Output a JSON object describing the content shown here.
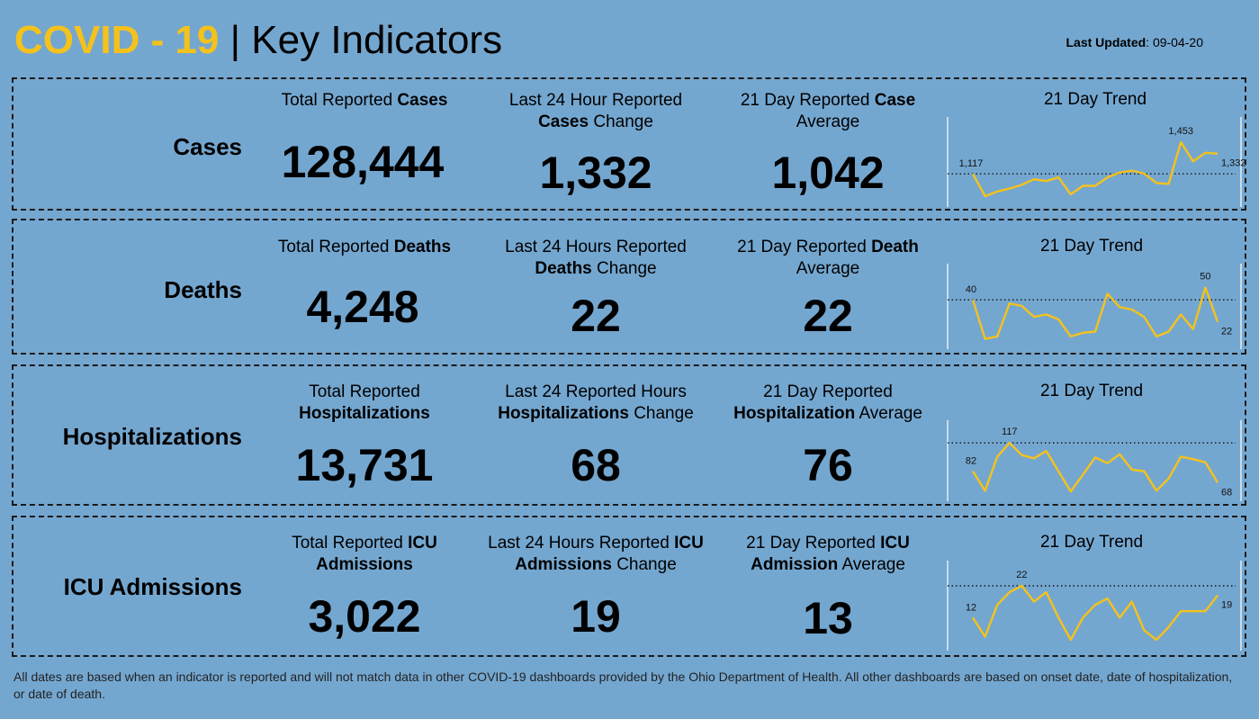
{
  "header": {
    "title_prefix": "COVID - 19",
    "title_sep": " | ",
    "title_suffix": "Key Indicators",
    "updated_label": "Last Updated",
    "updated_value": ": 09-04-20"
  },
  "colors": {
    "background": "#74a7d0",
    "accent": "#f5c21b",
    "line": "#f5c21b"
  },
  "rows": [
    {
      "label": "Cases",
      "h1a": "Total Reported ",
      "h1b": "Cases",
      "h1c": "",
      "h2a": "Last 24 Hour Reported ",
      "h2b": "Cases",
      "h2c": " Change",
      "h3a": "21 Day Reported ",
      "h3b": "Case",
      "h3c": " Average",
      "total": "128,444",
      "change": "1,332",
      "average": "1,042",
      "trend_title": "21 Day Trend"
    },
    {
      "label": "Deaths",
      "h1a": "Total Reported ",
      "h1b": "Deaths",
      "h1c": "",
      "h2a": "Last 24 Hours Reported ",
      "h2b": "Deaths",
      "h2c": " Change",
      "h3a": "21 Day Reported ",
      "h3b": "Death",
      "h3c": " Average",
      "total": "4,248",
      "change": "22",
      "average": "22",
      "trend_title": "21 Day Trend"
    },
    {
      "label": "Hospitalizations",
      "h1a": "Total Reported ",
      "h1b": "Hospitalizations",
      "h1c": "",
      "h2a": "Last 24 Reported Hours ",
      "h2b": "Hospitalizations",
      "h2c": " Change",
      "h3a": "21 Day Reported ",
      "h3b": "Hospitalization",
      "h3c": " Average",
      "total": "13,731",
      "change": "68",
      "average": "76",
      "trend_title": "21 Day Trend"
    },
    {
      "label": "ICU Admissions",
      "h1a": "Total Reported ",
      "h1b": "ICU Admissions",
      "h1c": "",
      "h2a": "Last 24 Hours Reported ",
      "h2b": "ICU Admissions",
      "h2c": " Change",
      "h3a": "21 Day Reported ",
      "h3b": "ICU Admission",
      "h3c": " Average",
      "total": "3,022",
      "change": "19",
      "average": "13",
      "trend_title": "21 Day Trend"
    }
  ],
  "chart_data": [
    {
      "type": "line",
      "title": "21 Day Trend",
      "values": [
        1117,
        880,
        930,
        960,
        1000,
        1060,
        1040,
        1080,
        900,
        990,
        990,
        1080,
        1130,
        1150,
        1120,
        1020,
        1010,
        1453,
        1250,
        1340,
        1332
      ],
      "reference_line": 1117,
      "labels": {
        "first": "1,117",
        "max": "1,453",
        "last": "1,332"
      }
    },
    {
      "type": "line",
      "title": "21 Day Trend",
      "values": [
        40,
        8,
        10,
        37,
        35,
        26,
        28,
        24,
        10,
        13,
        14,
        45,
        34,
        32,
        26,
        10,
        14,
        28,
        16,
        50,
        22
      ],
      "reference_line": 40,
      "labels": {
        "first": "40",
        "max": "50",
        "last": "22"
      }
    },
    {
      "type": "line",
      "title": "21 Day Trend",
      "values": [
        82,
        58,
        100,
        117,
        102,
        98,
        107,
        82,
        57,
        78,
        99,
        92,
        103,
        84,
        82,
        58,
        73,
        100,
        97,
        93,
        68
      ],
      "reference_line": 117,
      "labels": {
        "first": "82",
        "max": "117",
        "last": "68"
      }
    },
    {
      "type": "line",
      "title": "21 Day Trend",
      "values": [
        12,
        6,
        16,
        20,
        22,
        17,
        20,
        12,
        5,
        12,
        16,
        18,
        12,
        17,
        8,
        5,
        9,
        14,
        14,
        14,
        19
      ],
      "reference_line": 22,
      "labels": {
        "first": "12",
        "max": "22",
        "last": "19"
      }
    }
  ],
  "footnote": "All dates are based when an indicator is reported and will not match data in other COVID-19 dashboards provided by the Ohio Department of Health. All other dashboards are based on onset date, date of hospitalization, or date of death."
}
